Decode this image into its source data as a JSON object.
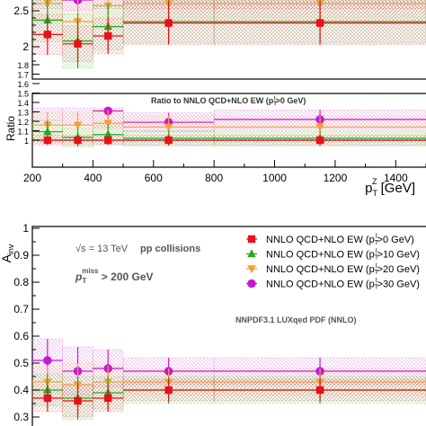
{
  "colors": {
    "nnlo_pt0": "#e8101a",
    "nnlo_pt10": "#22aa22",
    "nnlo_pt20": "#f79d3b",
    "nnlo_pt30": "#c61ad1"
  },
  "markers": {
    "nnlo_pt0": "square",
    "nnlo_pt10": "triangle-up",
    "nnlo_pt20": "triangle-down",
    "nnlo_pt30": "circle"
  },
  "chart_data": [
    {
      "type": "scatter",
      "panel": "top-cropped",
      "x_bins": [
        [
          200,
          300
        ],
        [
          300,
          400
        ],
        [
          400,
          500
        ],
        [
          500,
          800
        ],
        [
          800,
          1500
        ]
      ],
      "ylim": [
        1.7,
        2.7
      ],
      "yticks": [
        "2.5",
        "2"
      ],
      "series": [
        {
          "key": "nnlo_pt0",
          "values": [
            2.17,
            2.04,
            2.15,
            2.33,
            2.33
          ],
          "err": [
            0.28,
            0.25,
            0.25,
            0.3,
            0.3
          ]
        },
        {
          "key": "nnlo_pt10",
          "values": [
            2.37,
            2.08,
            2.28,
            2.35,
            2.35
          ],
          "err": [
            0.3,
            0.38,
            0.32,
            0.3,
            0.3
          ]
        },
        {
          "key": "nnlo_pt20",
          "values": [
            2.6,
            2.35,
            2.57,
            2.6,
            2.6
          ],
          "err": [
            0.25,
            0.3,
            0.3,
            0.2,
            0.2
          ]
        },
        {
          "key": "nnlo_pt30",
          "values": [
            2.68,
            2.65,
            2.68,
            2.68,
            2.68
          ],
          "err": [
            0.15,
            0.15,
            0.15,
            0.15,
            0.15
          ]
        }
      ]
    },
    {
      "type": "scatter",
      "panel": "ratio",
      "title": "Ratio to NNLO QCD+NLO EW (p",
      "title_sub": "T",
      "title_sup": "l",
      "title_end": ">0 GeV)",
      "ylabel": "Ratio",
      "xlabel_main": "p",
      "xlabel_sub": "T",
      "xlabel_sup": "Z",
      "xlabel_unit": " [GeV]",
      "xlim": [
        200,
        1500
      ],
      "ylim": [
        0.8,
        1.9
      ],
      "xticks": [
        "200",
        "400",
        "600",
        "800",
        "1000",
        "1200",
        "1400"
      ],
      "yticks": [
        "1",
        "1.1",
        "1.2",
        "1.3",
        "1.4",
        "1.5",
        "1.6",
        "1.7",
        "1.8"
      ],
      "x_bins": [
        [
          200,
          300
        ],
        [
          300,
          400
        ],
        [
          400,
          500
        ],
        [
          500,
          800
        ],
        [
          800,
          1500
        ]
      ],
      "series": [
        {
          "key": "nnlo_pt0",
          "values": [
            1.0,
            1.0,
            1.0,
            1.0,
            1.0
          ],
          "err": [
            0.05,
            0.05,
            0.05,
            0.05,
            0.05
          ]
        },
        {
          "key": "nnlo_pt10",
          "values": [
            1.09,
            1.03,
            1.06,
            1.02,
            1.02
          ],
          "err": [
            0.12,
            0.1,
            0.1,
            0.08,
            0.08
          ]
        },
        {
          "key": "nnlo_pt20",
          "values": [
            1.16,
            1.16,
            1.18,
            1.14,
            1.14
          ],
          "err": [
            0.14,
            0.14,
            0.14,
            0.12,
            0.12
          ]
        },
        {
          "key": "nnlo_pt30",
          "values": [
            1.41,
            1.36,
            1.31,
            1.19,
            1.22
          ],
          "err": [
            0.2,
            0.2,
            0.18,
            0.1,
            0.1
          ]
        }
      ]
    },
    {
      "type": "scatter",
      "panel": "ainv",
      "ylabel_main": "A",
      "ylabel_sub": "inv",
      "ylim": [
        0.25,
        1.0
      ],
      "yticks": [
        "0.3",
        "0.4",
        "0.5",
        "0.6",
        "0.7",
        "0.8",
        "0.9",
        "1"
      ],
      "x_bins": [
        [
          200,
          300
        ],
        [
          300,
          400
        ],
        [
          400,
          500
        ],
        [
          500,
          800
        ],
        [
          800,
          1500
        ]
      ],
      "annotations": {
        "sqrt_s": "√s = 13 TeV",
        "collisions": "pp collisions",
        "ptmiss_main": "p",
        "ptmiss_sub": "T",
        "ptmiss_sup": "miss",
        "ptmiss_cut": " > 200 GeV",
        "pdf": "NNPDF3.1 LUXqed PDF (NNLO)"
      },
      "legend": {
        "placement": "top-right",
        "entries": [
          {
            "key": "nnlo_pt0",
            "text": "NNLO QCD+NLO EW (p",
            "sub": "T",
            "sup": "l",
            "cut": ">0 GeV)"
          },
          {
            "key": "nnlo_pt10",
            "text": "NNLO QCD+NLO EW (p",
            "sub": "T",
            "sup": "l",
            "cut": ">10 GeV)"
          },
          {
            "key": "nnlo_pt20",
            "text": "NNLO QCD+NLO EW (p",
            "sub": "T",
            "sup": "l",
            "cut": ">20 GeV)"
          },
          {
            "key": "nnlo_pt30",
            "text": "NNLO QCD+NLO EW (p",
            "sub": "T",
            "sup": "l",
            "cut": ">30 GeV)"
          }
        ]
      },
      "series": [
        {
          "key": "nnlo_pt0",
          "values": [
            0.37,
            0.36,
            0.37,
            0.4,
            0.4
          ],
          "err": [
            0.05,
            0.06,
            0.05,
            0.04,
            0.04
          ]
        },
        {
          "key": "nnlo_pt10",
          "values": [
            0.4,
            0.37,
            0.39,
            0.4,
            0.4
          ],
          "err": [
            0.06,
            0.08,
            0.06,
            0.05,
            0.05
          ]
        },
        {
          "key": "nnlo_pt20",
          "values": [
            0.43,
            0.42,
            0.43,
            0.43,
            0.43
          ],
          "err": [
            0.06,
            0.08,
            0.06,
            0.05,
            0.05
          ]
        },
        {
          "key": "nnlo_pt30",
          "values": [
            0.51,
            0.47,
            0.48,
            0.47,
            0.47
          ],
          "err": [
            0.08,
            0.09,
            0.07,
            0.05,
            0.05
          ]
        }
      ]
    }
  ]
}
